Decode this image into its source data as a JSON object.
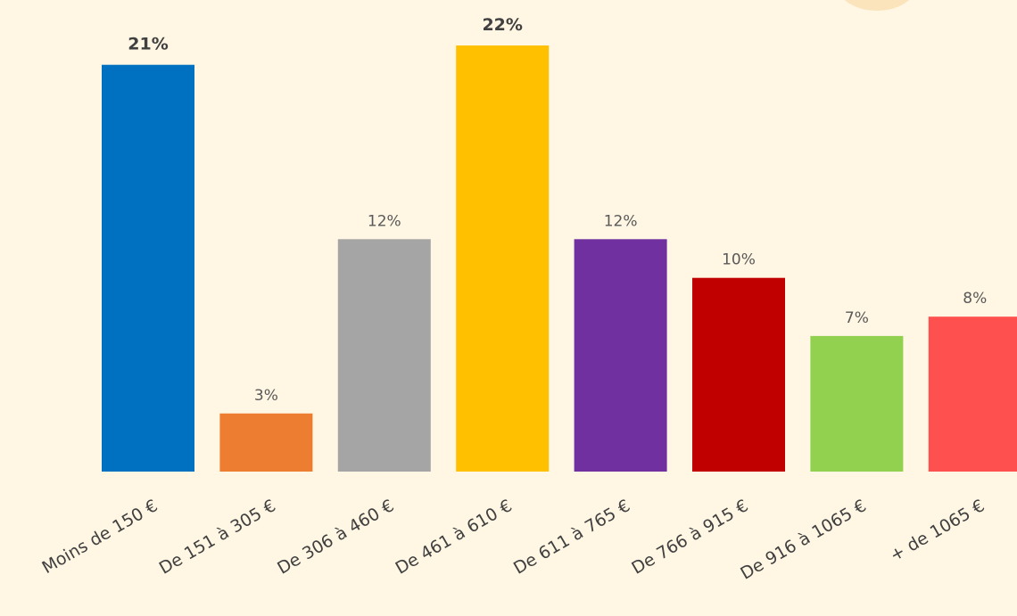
{
  "chart_data": {
    "type": "bar",
    "categories": [
      "Moins de 150 €",
      "De 151 à 305 €",
      "De 306 à 460 €",
      "De 461 à 610 €",
      "De 611 à 765 €",
      "De 766 à 915 €",
      "De 916 à 1065 €",
      "+ de 1065 €"
    ],
    "values": [
      21,
      3,
      12,
      22,
      12,
      10,
      7,
      8
    ],
    "data_labels": [
      "21%",
      "3%",
      "12%",
      "22%",
      "12%",
      "10%",
      "7%",
      "8%"
    ],
    "bold_labels": [
      true,
      false,
      false,
      true,
      false,
      false,
      false,
      false
    ],
    "colors": [
      "#0070c0",
      "#ed7d31",
      "#a5a5a5",
      "#ffc000",
      "#7030a0",
      "#c00000",
      "#92d050",
      "#ff5050"
    ],
    "title": "",
    "xlabel": "",
    "ylabel": "",
    "grid": false,
    "legend": "none"
  },
  "background_color": "#fff6e3"
}
